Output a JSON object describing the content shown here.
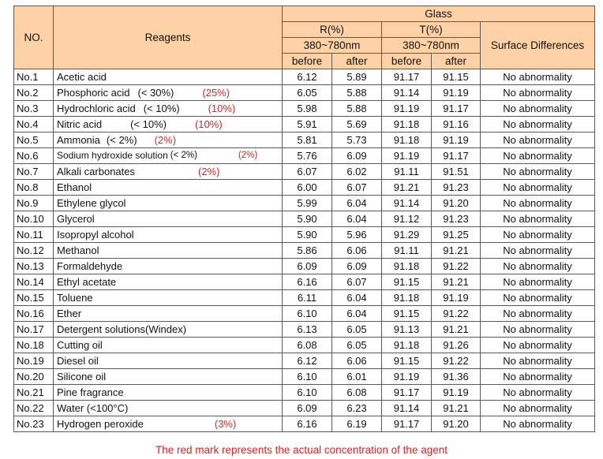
{
  "header": {
    "no": "NO.",
    "reagents": "Reagents",
    "glass": "Glass",
    "r": "R(%)",
    "t": "T(%)",
    "range_r": "380~780nm",
    "range_t": "380~780nm",
    "surface": "Surface Differences",
    "before": "before",
    "after": "after"
  },
  "rows": [
    {
      "no": "No.1",
      "reagent": "Acetic acid",
      "limit": "",
      "mark": "",
      "r_before": "6.12",
      "r_after": "5.89",
      "t_before": "91.17",
      "t_after": "91.15",
      "diff": "No abnormality"
    },
    {
      "no": "No.2",
      "reagent": "Phosphoric acid",
      "limit": "(< 30%)",
      "mark": "(25%)",
      "r_before": "6.05",
      "r_after": "5.88",
      "t_before": "91.14",
      "t_after": "91.19",
      "diff": "No abnormality"
    },
    {
      "no": "No.3",
      "reagent": "Hydrochloric acid",
      "limit": "(< 10%)",
      "mark": "(10%)",
      "r_before": "5.98",
      "r_after": "5.88",
      "t_before": "91.19",
      "t_after": "91.17",
      "diff": "No abnormality"
    },
    {
      "no": "No.4",
      "reagent": "Nitric acid",
      "limit": "(< 10%)",
      "mark": "(10%)",
      "r_before": "5.91",
      "r_after": "5.69",
      "t_before": "91.18",
      "t_after": "91.16",
      "diff": "No abnormality"
    },
    {
      "no": "No.5",
      "reagent": "Ammonia",
      "limit": "(< 2%)",
      "mark": "(2%)",
      "r_before": "5.81",
      "r_after": "5.73",
      "t_before": "91.18",
      "t_after": "91.19",
      "diff": "No abnormality"
    },
    {
      "no": "No.6",
      "reagent": "Sodium hydroxide solution",
      "limit": "(< 2%)",
      "mark": "(2%)",
      "r_before": "5.76",
      "r_after": "6.09",
      "t_before": "91.19",
      "t_after": "91.17",
      "diff": "No abnormality"
    },
    {
      "no": "No.7",
      "reagent": "Alkali carbonates",
      "limit": "",
      "mark": "(2%)",
      "r_before": "6.07",
      "r_after": "6.02",
      "t_before": "91.11",
      "t_after": "91.51",
      "diff": "No abnormality"
    },
    {
      "no": "No.8",
      "reagent": "Ethanol",
      "limit": "",
      "mark": "",
      "r_before": "6.00",
      "r_after": "6.07",
      "t_before": "91.21",
      "t_after": "91.23",
      "diff": "No abnormality"
    },
    {
      "no": "No.9",
      "reagent": "Ethylene glycol",
      "limit": "",
      "mark": "",
      "r_before": "5.99",
      "r_after": "6.04",
      "t_before": "91.14",
      "t_after": "91.20",
      "diff": "No abnormality"
    },
    {
      "no": "No.10",
      "reagent": "Glycerol",
      "limit": "",
      "mark": "",
      "r_before": "5.90",
      "r_after": "6.04",
      "t_before": "91.12",
      "t_after": "91.23",
      "diff": "No abnormality"
    },
    {
      "no": "No.11",
      "reagent": "Isopropyl alcohol",
      "limit": "",
      "mark": "",
      "r_before": "5.90",
      "r_after": "5.96",
      "t_before": "91.29",
      "t_after": "91.25",
      "diff": "No abnormality"
    },
    {
      "no": "No.12",
      "reagent": "Methanol",
      "limit": "",
      "mark": "",
      "r_before": "5.86",
      "r_after": "6.06",
      "t_before": "91.11",
      "t_after": "91.21",
      "diff": "No abnormality"
    },
    {
      "no": "No.13",
      "reagent": "Formaldehyde",
      "limit": "",
      "mark": "",
      "r_before": "6.09",
      "r_after": "6.09",
      "t_before": "91.18",
      "t_after": "91.22",
      "diff": "No abnormality"
    },
    {
      "no": "No.14",
      "reagent": "Ethyl acetate",
      "limit": "",
      "mark": "",
      "r_before": "6.16",
      "r_after": "6.07",
      "t_before": "91.15",
      "t_after": "91.21",
      "diff": "No abnormality"
    },
    {
      "no": "No.15",
      "reagent": "Toluene",
      "limit": "",
      "mark": "",
      "r_before": "6.11",
      "r_after": "6.04",
      "t_before": "91.18",
      "t_after": "91.19",
      "diff": "No abnormality"
    },
    {
      "no": "No.16",
      "reagent": "Ether",
      "limit": "",
      "mark": "",
      "r_before": "6.10",
      "r_after": "6.04",
      "t_before": "91.15",
      "t_after": "91.22",
      "diff": "No abnormality"
    },
    {
      "no": "No.17",
      "reagent": "Detergent solutions(Windex)",
      "limit": "",
      "mark": "",
      "r_before": "6.13",
      "r_after": "6.05",
      "t_before": "91.13",
      "t_after": "91.21",
      "diff": "No abnormality"
    },
    {
      "no": "No.18",
      "reagent": "Cutting oil",
      "limit": "",
      "mark": "",
      "r_before": "6.08",
      "r_after": "6.05",
      "t_before": "91.18",
      "t_after": "91.26",
      "diff": "No abnormality"
    },
    {
      "no": "No.19",
      "reagent": "Diesel oil",
      "limit": "",
      "mark": "",
      "r_before": "6.12",
      "r_after": "6.06",
      "t_before": "91.15",
      "t_after": "91.22",
      "diff": "No abnormality"
    },
    {
      "no": "No.20",
      "reagent": "Silicone oil",
      "limit": "",
      "mark": "",
      "r_before": "6.10",
      "r_after": "6.01",
      "t_before": "91.19",
      "t_after": "91.36",
      "diff": "No abnormality"
    },
    {
      "no": "No.21",
      "reagent": "Pine fragrance",
      "limit": "",
      "mark": "",
      "r_before": "6.10",
      "r_after": "6.08",
      "t_before": "91.17",
      "t_after": "91.19",
      "diff": "No abnormality"
    },
    {
      "no": "No.22",
      "reagent": "Water (<100°C)",
      "limit": "",
      "mark": "",
      "r_before": "6.09",
      "r_after": "6.23",
      "t_before": "91.14",
      "t_after": "91.21",
      "diff": "No abnormality"
    },
    {
      "no": "No.23",
      "reagent": "Hydrogen peroxide",
      "limit": "",
      "mark": "(3%)",
      "r_before": "6.16",
      "r_after": "6.19",
      "t_before": "91.17",
      "t_after": "91.20",
      "diff": "No abnormality"
    }
  ],
  "footnote": "The red mark represents the actual concentration of the agent",
  "colors": {
    "header_bg": "#fcd2a6",
    "mark": "#e02020",
    "border": "#5a5a5a"
  }
}
